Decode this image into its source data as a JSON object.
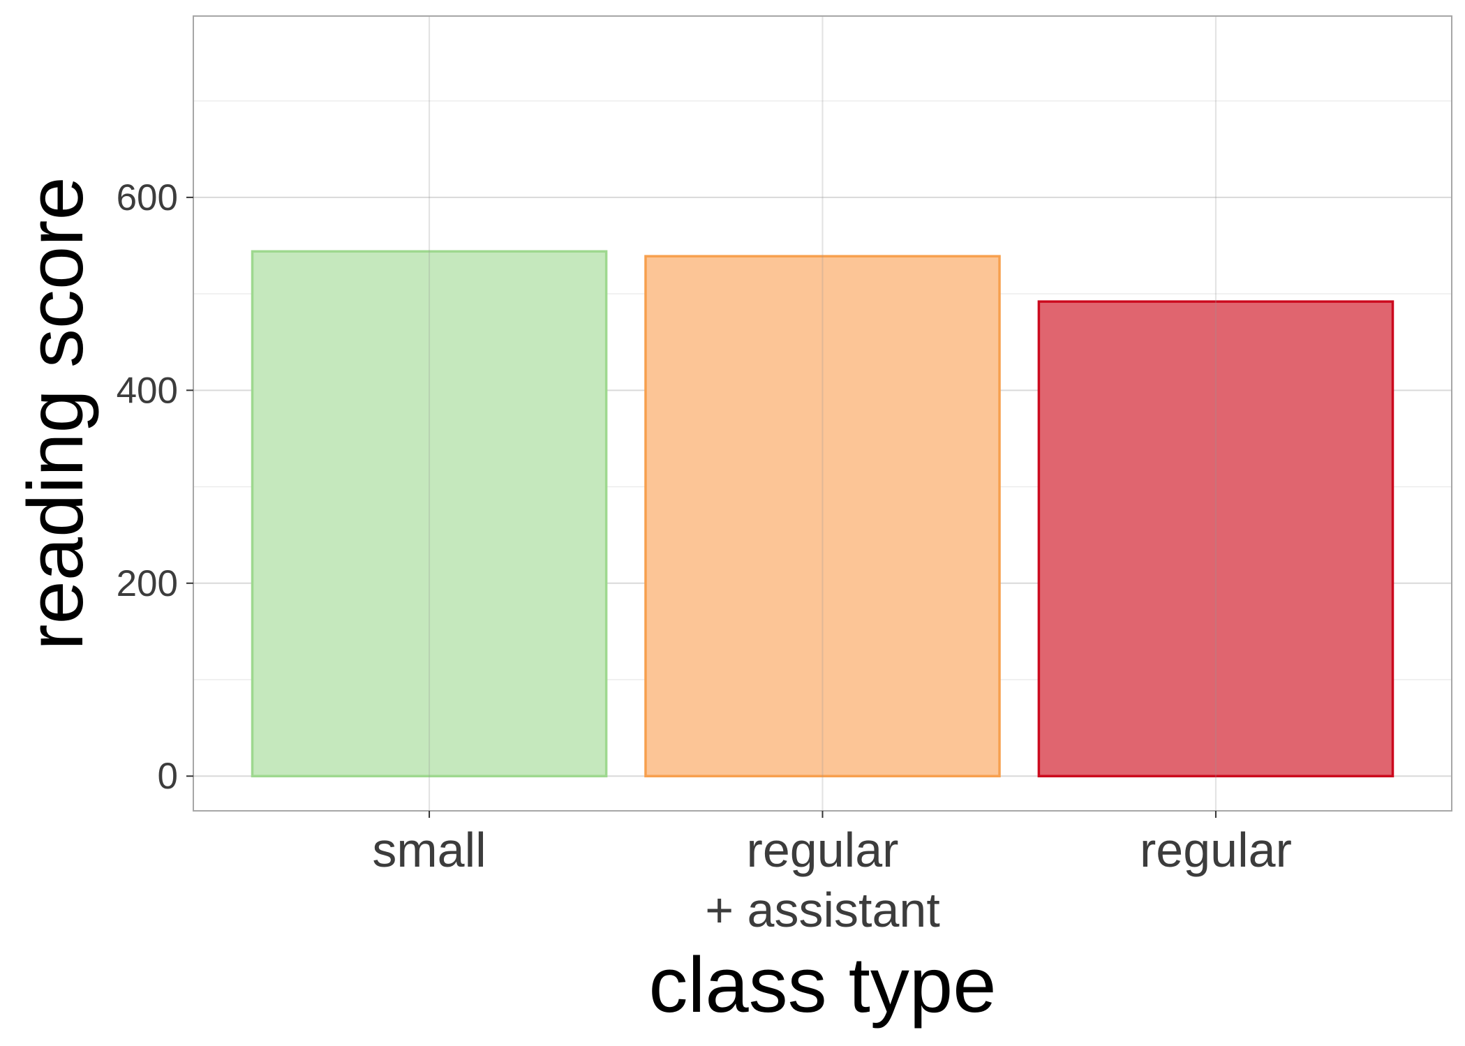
{
  "chart_data": {
    "type": "bar",
    "categories": [
      "small",
      "regular\n+ assistant",
      "regular"
    ],
    "values": [
      544,
      539,
      492
    ],
    "xlabel": "class type",
    "ylabel": "reading score",
    "ylim": [
      -36,
      788
    ],
    "yticks": [
      0,
      200,
      400,
      600
    ],
    "y_minor_gridlines": [
      100,
      300,
      500,
      700
    ],
    "grid": true,
    "legend": "none",
    "bar_fill_colors": [
      "#c5e8bd",
      "#fcc596",
      "#e0656f"
    ],
    "bar_outline_colors": [
      "#9ed88f",
      "#f7a04e",
      "#cc0a1e"
    ]
  }
}
